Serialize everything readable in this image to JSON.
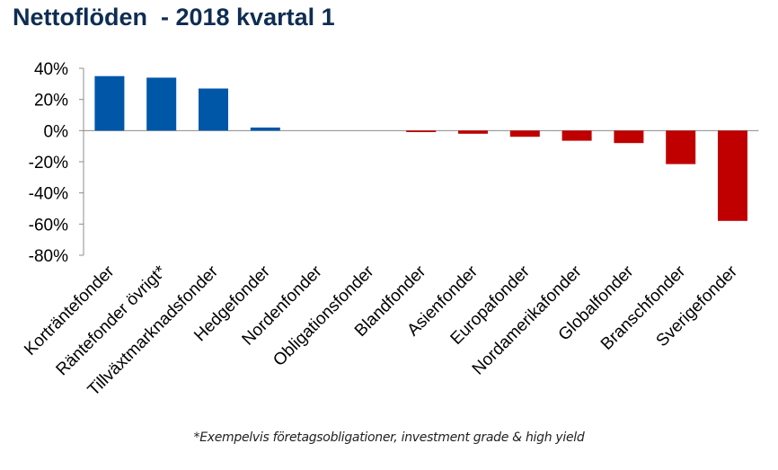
{
  "title": "Nettoflöden  - 2018 kvartal 1",
  "footnote": "*Exempelvis företagsobligationer, investment grade & high yield",
  "colors": {
    "positive": "#0057a8",
    "negative": "#c00000",
    "title": "#0f2d52",
    "axis": "#8c8c8c"
  },
  "chart_data": {
    "type": "bar",
    "title": "Nettoflöden  - 2018 kvartal 1",
    "categories": [
      "Korträntefonder",
      "Räntefonder övrigt*",
      "Tillväxtmarknadsfonder",
      "Hedgefonder",
      "Nordenfonder",
      "Obligationsfonder",
      "Blandfonder",
      "Asienfonder",
      "Europafonder",
      "Nordamerikafonder",
      "Globalfonder",
      "Branschfonder",
      "Sverigefonder"
    ],
    "values": [
      35,
      34,
      27,
      2,
      0,
      0,
      -1,
      -2,
      -4,
      -6.5,
      -8,
      -21.5,
      -58
    ],
    "unit": "%",
    "ylim": [
      -80,
      40
    ],
    "yticks": [
      40,
      20,
      0,
      -20,
      -40,
      -60,
      -80
    ],
    "ytick_labels": [
      "40%",
      "20%",
      "0%",
      "-20%",
      "-40%",
      "-60%",
      "-80%"
    ],
    "grid": false,
    "legend": "none",
    "xlabel": "",
    "ylabel": ""
  }
}
